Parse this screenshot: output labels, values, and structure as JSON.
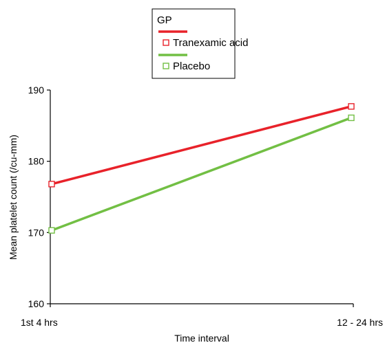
{
  "chart_data": {
    "type": "line",
    "categories": [
      "1st 4 hrs",
      "12 - 24 hrs"
    ],
    "series": [
      {
        "name": "Tranexamic acid",
        "values": [
          176.8,
          187.7
        ],
        "color": "#e8222a"
      },
      {
        "name": "Placebo",
        "values": [
          170.3,
          186.1
        ],
        "color": "#72bf44"
      }
    ],
    "title": "",
    "xlabel": "Time interval",
    "ylabel": "Mean platelet count (/cu-mm)",
    "ylim": [
      160,
      190
    ],
    "yticks": [
      "160",
      "170",
      "180",
      "190"
    ],
    "legend": {
      "title": "GP",
      "position": "top-center"
    },
    "grid": false,
    "marker": "open-square"
  }
}
